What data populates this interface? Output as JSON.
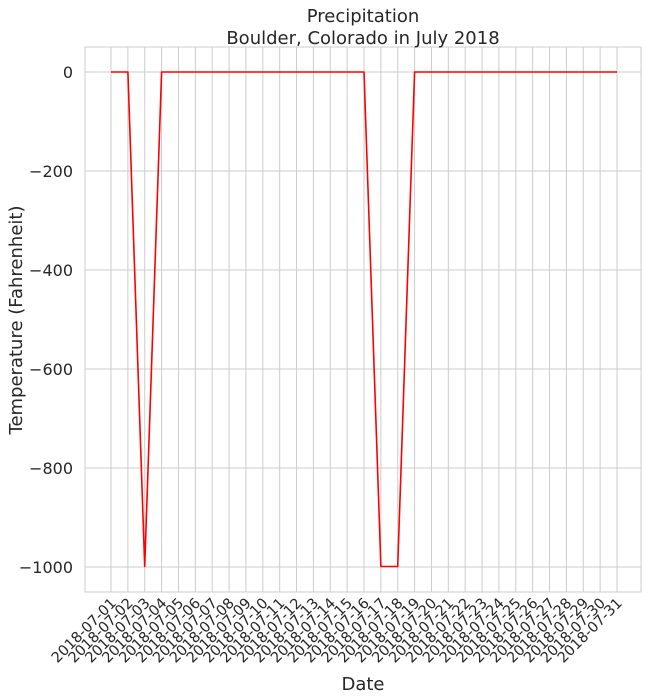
{
  "chart_data": {
    "type": "line",
    "title": [
      "Precipitation",
      "Boulder, Colorado in July 2018"
    ],
    "xlabel": "Date",
    "ylabel": "Temperature (Fahrenheit)",
    "grid": true,
    "ylim": [
      -1050,
      50
    ],
    "yticks": [
      0,
      -200,
      -400,
      -600,
      -800,
      -1000
    ],
    "ytick_labels": [
      "0",
      "−200",
      "−400",
      "−600",
      "−800",
      "−1000"
    ],
    "x": [
      "2018-07-01",
      "2018-07-02",
      "2018-07-03",
      "2018-07-04",
      "2018-07-05",
      "2018-07-06",
      "2018-07-07",
      "2018-07-08",
      "2018-07-09",
      "2018-07-10",
      "2018-07-11",
      "2018-07-12",
      "2018-07-13",
      "2018-07-14",
      "2018-07-15",
      "2018-07-16",
      "2018-07-17",
      "2018-07-18",
      "2018-07-19",
      "2018-07-20",
      "2018-07-21",
      "2018-07-22",
      "2018-07-23",
      "2018-07-24",
      "2018-07-25",
      "2018-07-26",
      "2018-07-27",
      "2018-07-28",
      "2018-07-29",
      "2018-07-30",
      "2018-07-31"
    ],
    "series": [
      {
        "color": "#ff0000",
        "values": [
          0,
          0,
          -999,
          0,
          0,
          0,
          0,
          0,
          0,
          0,
          0,
          0,
          0,
          0,
          0,
          0,
          -999,
          -999,
          0,
          0,
          0,
          0,
          0,
          0,
          0,
          0,
          0,
          0,
          0,
          0,
          0
        ]
      }
    ]
  }
}
